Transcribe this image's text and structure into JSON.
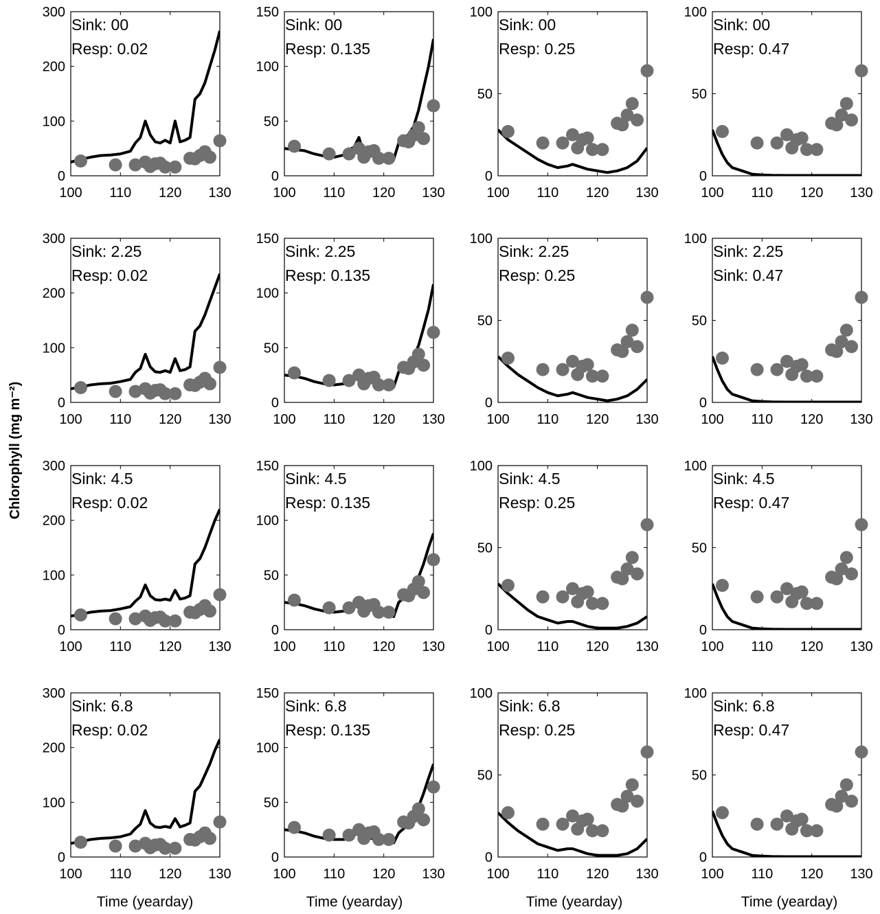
{
  "figure": {
    "ylabel": "Chlorophyll (mg m⁻²)",
    "xlabel": "Time (yearday)"
  },
  "observations": {
    "x": [
      102,
      109,
      113,
      115,
      116,
      117,
      118,
      119,
      121,
      124,
      125,
      126,
      127,
      128,
      130
    ],
    "y": [
      27,
      20,
      20,
      25,
      17,
      22,
      23,
      16,
      16,
      32,
      31,
      37,
      44,
      34,
      64
    ],
    "color": "#707070"
  },
  "model_color": "#000000",
  "chart_data": [
    {
      "type": "line",
      "annotation": [
        "Sink: 00",
        "Resp: 0.02"
      ],
      "xlim": [
        100,
        130
      ],
      "ylim": [
        0,
        300
      ],
      "xticks": [
        100,
        110,
        120,
        130
      ],
      "yticks": [
        0,
        100,
        200,
        300
      ],
      "series": [
        {
          "x": [
            100,
            102,
            104,
            106,
            108,
            110,
            112,
            113,
            114,
            115,
            116,
            117,
            118,
            119,
            120,
            121,
            122,
            123,
            124,
            125,
            126,
            127,
            128,
            129,
            130
          ],
          "y": [
            25,
            30,
            34,
            37,
            38,
            40,
            45,
            60,
            70,
            100,
            75,
            62,
            60,
            65,
            60,
            100,
            62,
            65,
            70,
            140,
            150,
            170,
            200,
            230,
            265
          ]
        }
      ],
      "scatter": "observations"
    },
    {
      "type": "line",
      "annotation": [
        "Sink: 00",
        "Resp: 0.135"
      ],
      "xlim": [
        100,
        130
      ],
      "ylim": [
        0,
        150
      ],
      "xticks": [
        100,
        110,
        120,
        130
      ],
      "yticks": [
        0,
        50,
        100,
        150
      ],
      "series": [
        {
          "x": [
            100,
            102,
            104,
            106,
            108,
            110,
            112,
            113,
            114,
            115,
            116,
            117,
            118,
            119,
            120,
            121,
            122,
            123,
            124,
            125,
            126,
            127,
            128,
            129,
            130
          ],
          "y": [
            25,
            24,
            23,
            20,
            18,
            17,
            19,
            24,
            26,
            35,
            20,
            19,
            20,
            18,
            17,
            16,
            15,
            30,
            33,
            38,
            45,
            60,
            80,
            100,
            125
          ]
        }
      ],
      "scatter": "observations"
    },
    {
      "type": "line",
      "annotation": [
        "Sink: 00",
        "Resp: 0.25"
      ],
      "xlim": [
        100,
        130
      ],
      "ylim": [
        0,
        100
      ],
      "xticks": [
        100,
        110,
        120,
        130
      ],
      "yticks": [
        0,
        50,
        100
      ],
      "series": [
        {
          "x": [
            100,
            102,
            104,
            106,
            108,
            110,
            112,
            114,
            115,
            116,
            118,
            120,
            122,
            124,
            126,
            128,
            130
          ],
          "y": [
            28,
            22,
            18,
            14,
            10,
            7,
            5,
            6,
            7,
            6,
            4,
            3,
            2,
            3,
            5,
            9,
            17
          ]
        }
      ],
      "scatter": "observations"
    },
    {
      "type": "line",
      "annotation": [
        "Sink: 00",
        "Resp: 0.47"
      ],
      "xlim": [
        100,
        130
      ],
      "ylim": [
        0,
        100
      ],
      "xticks": [
        100,
        110,
        120,
        130
      ],
      "yticks": [
        0,
        50,
        100
      ],
      "series": [
        {
          "x": [
            100,
            101,
            102,
            103,
            104,
            106,
            108,
            110,
            112,
            115,
            120,
            125,
            130
          ],
          "y": [
            28,
            20,
            13,
            8,
            5,
            3,
            1,
            0.5,
            0.3,
            0.2,
            0.2,
            0.2,
            0.2
          ]
        }
      ],
      "scatter": "observations"
    },
    {
      "type": "line",
      "annotation": [
        "Sink: 2.25",
        "Resp: 0.02"
      ],
      "xlim": [
        100,
        130
      ],
      "ylim": [
        0,
        300
      ],
      "xticks": [
        100,
        110,
        120,
        130
      ],
      "yticks": [
        0,
        100,
        200,
        300
      ],
      "series": [
        {
          "x": [
            100,
            102,
            104,
            106,
            108,
            110,
            112,
            113,
            114,
            115,
            116,
            117,
            118,
            119,
            120,
            121,
            122,
            123,
            124,
            125,
            126,
            127,
            128,
            129,
            130
          ],
          "y": [
            25,
            28,
            32,
            34,
            35,
            38,
            42,
            55,
            62,
            88,
            65,
            56,
            55,
            58,
            55,
            80,
            58,
            60,
            65,
            130,
            140,
            160,
            185,
            210,
            235
          ]
        }
      ],
      "scatter": "observations"
    },
    {
      "type": "line",
      "annotation": [
        "Sink: 2.25",
        "Resp: 0.135"
      ],
      "xlim": [
        100,
        130
      ],
      "ylim": [
        0,
        150
      ],
      "xticks": [
        100,
        110,
        120,
        130
      ],
      "yticks": [
        0,
        50,
        100,
        150
      ],
      "series": [
        {
          "x": [
            100,
            102,
            104,
            106,
            108,
            110,
            112,
            113,
            114,
            115,
            116,
            117,
            118,
            119,
            120,
            121,
            122,
            123,
            124,
            125,
            126,
            127,
            128,
            129,
            130
          ],
          "y": [
            25,
            24,
            22,
            19,
            17,
            16,
            17,
            20,
            22,
            27,
            19,
            18,
            18,
            17,
            16,
            15,
            14,
            28,
            31,
            35,
            42,
            52,
            68,
            85,
            108
          ]
        }
      ],
      "scatter": "observations"
    },
    {
      "type": "line",
      "annotation": [
        "Sink: 2.25",
        "Resp: 0.25"
      ],
      "xlim": [
        100,
        130
      ],
      "ylim": [
        0,
        100
      ],
      "xticks": [
        100,
        110,
        120,
        130
      ],
      "yticks": [
        0,
        50,
        100
      ],
      "series": [
        {
          "x": [
            100,
            102,
            104,
            106,
            108,
            110,
            112,
            114,
            115,
            116,
            118,
            120,
            122,
            124,
            126,
            128,
            130
          ],
          "y": [
            28,
            22,
            17,
            13,
            9,
            6,
            4,
            5,
            6,
            5,
            3,
            2,
            1,
            2,
            4,
            8,
            14
          ]
        }
      ],
      "scatter": "observations"
    },
    {
      "type": "line",
      "annotation": [
        "Sink: 2.25",
        "Sink: 0.47"
      ],
      "xlim": [
        100,
        130
      ],
      "ylim": [
        0,
        100
      ],
      "xticks": [
        100,
        110,
        120,
        130
      ],
      "yticks": [
        0,
        50,
        100
      ],
      "series": [
        {
          "x": [
            100,
            101,
            102,
            103,
            104,
            106,
            108,
            110,
            112,
            115,
            120,
            125,
            130
          ],
          "y": [
            28,
            20,
            13,
            8,
            5,
            3,
            1,
            0.5,
            0.3,
            0.2,
            0.2,
            0.2,
            0.2
          ]
        }
      ],
      "scatter": "observations"
    },
    {
      "type": "line",
      "annotation": [
        "Sink: 4.5",
        "Resp: 0.02"
      ],
      "xlim": [
        100,
        130
      ],
      "ylim": [
        0,
        300
      ],
      "xticks": [
        100,
        110,
        120,
        130
      ],
      "yticks": [
        0,
        100,
        200,
        300
      ],
      "series": [
        {
          "x": [
            100,
            102,
            104,
            106,
            108,
            110,
            112,
            113,
            114,
            115,
            116,
            117,
            118,
            119,
            120,
            121,
            122,
            123,
            124,
            125,
            126,
            127,
            128,
            129,
            130
          ],
          "y": [
            25,
            28,
            32,
            34,
            35,
            38,
            42,
            52,
            60,
            82,
            62,
            55,
            54,
            56,
            54,
            72,
            56,
            58,
            62,
            120,
            130,
            150,
            175,
            200,
            220
          ]
        }
      ],
      "scatter": "observations"
    },
    {
      "type": "line",
      "annotation": [
        "Sink: 4.5",
        "Resp: 0.135"
      ],
      "xlim": [
        100,
        130
      ],
      "ylim": [
        0,
        150
      ],
      "xticks": [
        100,
        110,
        120,
        130
      ],
      "yticks": [
        0,
        50,
        100,
        150
      ],
      "series": [
        {
          "x": [
            100,
            102,
            104,
            106,
            108,
            110,
            112,
            113,
            114,
            115,
            116,
            117,
            118,
            119,
            120,
            121,
            122,
            123,
            124,
            125,
            126,
            127,
            128,
            129,
            130
          ],
          "y": [
            25,
            24,
            22,
            19,
            17,
            16,
            17,
            20,
            22,
            26,
            19,
            18,
            18,
            17,
            16,
            14,
            12,
            25,
            29,
            33,
            40,
            48,
            60,
            75,
            88
          ]
        }
      ],
      "scatter": "observations"
    },
    {
      "type": "line",
      "annotation": [
        "Sink: 4.5",
        "Resp: 0.25"
      ],
      "xlim": [
        100,
        130
      ],
      "ylim": [
        0,
        100
      ],
      "xticks": [
        100,
        110,
        120,
        130
      ],
      "yticks": [
        0,
        50,
        100
      ],
      "series": [
        {
          "x": [
            100,
            102,
            104,
            106,
            108,
            110,
            112,
            114,
            115,
            116,
            118,
            120,
            122,
            124,
            126,
            128,
            130
          ],
          "y": [
            28,
            22,
            17,
            12,
            8,
            6,
            4,
            5,
            5,
            4,
            2,
            1,
            1,
            1,
            2,
            4,
            8
          ]
        }
      ],
      "scatter": "observations"
    },
    {
      "type": "line",
      "annotation": [
        "Sink: 4.5",
        "Resp: 0.47"
      ],
      "xlim": [
        100,
        130
      ],
      "ylim": [
        0,
        100
      ],
      "xticks": [
        100,
        110,
        120,
        130
      ],
      "yticks": [
        0,
        50,
        100
      ],
      "series": [
        {
          "x": [
            100,
            101,
            102,
            103,
            104,
            106,
            108,
            110,
            112,
            115,
            120,
            125,
            130
          ],
          "y": [
            28,
            20,
            13,
            8,
            5,
            3,
            1,
            0.5,
            0.3,
            0.2,
            0.2,
            0.2,
            0.2
          ]
        }
      ],
      "scatter": "observations"
    },
    {
      "type": "line",
      "annotation": [
        "Sink: 6.8",
        "Resp: 0.02"
      ],
      "xlim": [
        100,
        130
      ],
      "ylim": [
        0,
        300
      ],
      "xticks": [
        100,
        110,
        120,
        130
      ],
      "yticks": [
        0,
        100,
        200,
        300
      ],
      "series": [
        {
          "x": [
            100,
            102,
            104,
            106,
            108,
            110,
            112,
            113,
            114,
            115,
            116,
            117,
            118,
            119,
            120,
            121,
            122,
            123,
            124,
            125,
            126,
            127,
            128,
            129,
            130
          ],
          "y": [
            25,
            28,
            32,
            34,
            35,
            37,
            42,
            52,
            60,
            85,
            62,
            55,
            54,
            56,
            54,
            70,
            55,
            58,
            62,
            120,
            130,
            150,
            170,
            195,
            215
          ]
        }
      ],
      "scatter": "observations"
    },
    {
      "type": "line",
      "annotation": [
        "Sink: 6.8",
        "Resp: 0.135"
      ],
      "xlim": [
        100,
        130
      ],
      "ylim": [
        0,
        150
      ],
      "xticks": [
        100,
        110,
        120,
        130
      ],
      "yticks": [
        0,
        50,
        100,
        150
      ],
      "series": [
        {
          "x": [
            100,
            102,
            104,
            106,
            108,
            110,
            112,
            113,
            114,
            115,
            116,
            117,
            118,
            119,
            120,
            121,
            122,
            123,
            124,
            125,
            126,
            127,
            128,
            129,
            130
          ],
          "y": [
            25,
            24,
            22,
            19,
            17,
            16,
            16,
            18,
            20,
            22,
            18,
            17,
            17,
            16,
            15,
            14,
            13,
            22,
            26,
            30,
            38,
            46,
            58,
            72,
            85
          ]
        }
      ],
      "scatter": "observations"
    },
    {
      "type": "line",
      "annotation": [
        "Sink: 6.8",
        "Resp: 0.25"
      ],
      "xlim": [
        100,
        130
      ],
      "ylim": [
        0,
        100
      ],
      "xticks": [
        100,
        110,
        120,
        130
      ],
      "yticks": [
        0,
        50,
        100
      ],
      "series": [
        {
          "x": [
            100,
            102,
            104,
            106,
            108,
            110,
            112,
            114,
            115,
            116,
            118,
            120,
            122,
            124,
            126,
            128,
            130
          ],
          "y": [
            27,
            21,
            16,
            12,
            8,
            6,
            4,
            5,
            5,
            4,
            2,
            1,
            1,
            1,
            2,
            5,
            11
          ]
        }
      ],
      "scatter": "observations"
    },
    {
      "type": "line",
      "annotation": [
        "Sink: 6.8",
        "Resp: 0.47"
      ],
      "xlim": [
        100,
        130
      ],
      "ylim": [
        0,
        100
      ],
      "xticks": [
        100,
        110,
        120,
        130
      ],
      "yticks": [
        0,
        50,
        100
      ],
      "series": [
        {
          "x": [
            100,
            101,
            102,
            103,
            104,
            106,
            108,
            110,
            112,
            115,
            120,
            125,
            130
          ],
          "y": [
            28,
            20,
            13,
            8,
            5,
            3,
            1,
            0.5,
            0.3,
            0.2,
            0.2,
            0.2,
            0.2
          ]
        }
      ],
      "scatter": "observations"
    }
  ]
}
